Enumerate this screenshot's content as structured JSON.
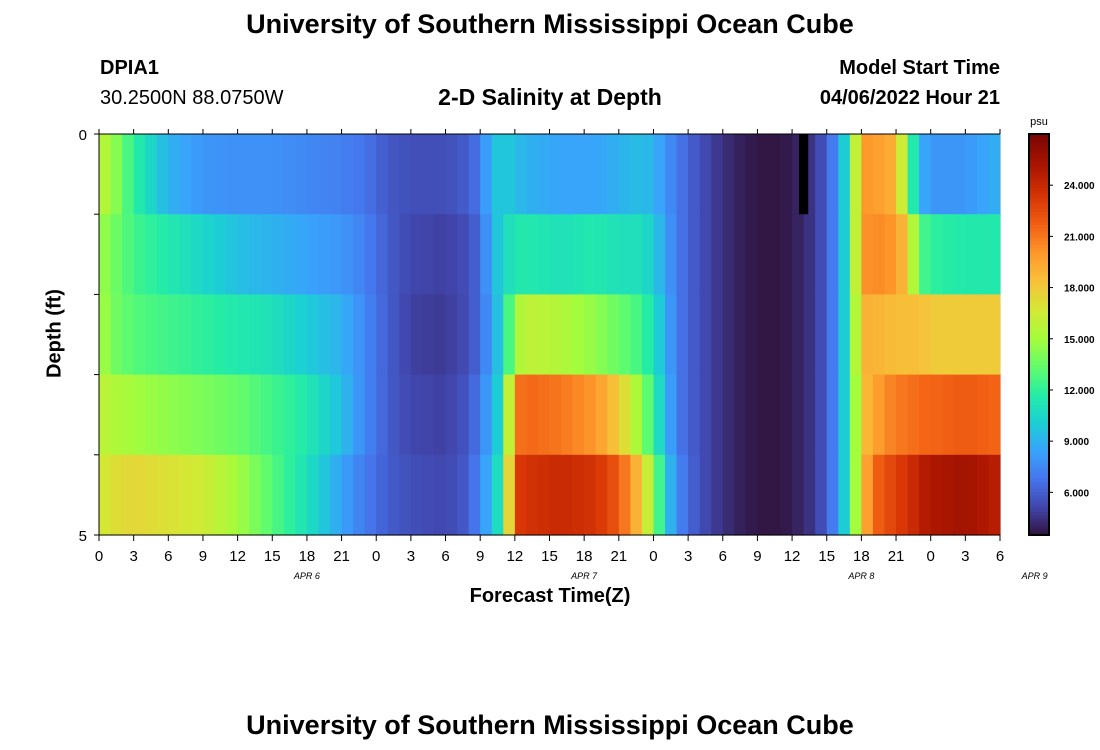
{
  "page": {
    "title": "University of Southern Mississippi Ocean Cube",
    "footer_title": "University of Southern Mississippi Ocean Cube",
    "station_id": "DPIA1",
    "station_coords": "30.2500N  88.0750W",
    "plot_title": "2-D Salinity at Depth",
    "model_start_label": "Model Start Time",
    "model_start_value": "04/06/2022 Hour 21"
  },
  "chart_data": {
    "type": "heatmap",
    "title": "2-D Salinity at Depth",
    "xlabel": "Forecast Time(Z)",
    "ylabel": "Depth (ft)",
    "colorbar_unit": "psu",
    "colorbar_ticks": [
      "6.000",
      "9.000",
      "12.000",
      "15.000",
      "18.000",
      "21.000",
      "24.000"
    ],
    "colorbar_range": [
      3.5,
      27
    ],
    "ylim": [
      0,
      5
    ],
    "y_tick_labels": [
      "0",
      "5"
    ],
    "x_tick_labels": [
      "0",
      "3",
      "6",
      "9",
      "12",
      "15",
      "18",
      "21",
      "0",
      "3",
      "6",
      "9",
      "12",
      "15",
      "18",
      "21",
      "0",
      "3",
      "6",
      "9",
      "12",
      "15",
      "18",
      "21",
      "0",
      "3",
      "6"
    ],
    "day_labels": [
      {
        "label": "APR 6",
        "hour": 18
      },
      {
        "label": "APR 7",
        "hour": 42
      },
      {
        "label": "APR 8",
        "hour": 66
      },
      {
        "label": "APR 9",
        "hour": 81
      }
    ],
    "x_range_hours": [
      0,
      78
    ],
    "depth_layers": 5,
    "keyframes": [
      {
        "h": 0,
        "v": [
          16.0,
          15.0,
          15.5,
          16.0,
          16.5
        ]
      },
      {
        "h": 1,
        "v": [
          15.0,
          14.0,
          14.0,
          15.5,
          17.0
        ]
      },
      {
        "h": 3,
        "v": [
          12.0,
          12.5,
          13.0,
          15.0,
          17.5
        ]
      },
      {
        "h": 6,
        "v": [
          9.0,
          11.5,
          12.5,
          14.5,
          17.0
        ]
      },
      {
        "h": 9,
        "v": [
          8.0,
          10.5,
          12.0,
          14.0,
          16.5
        ]
      },
      {
        "h": 12,
        "v": [
          7.8,
          9.5,
          11.5,
          13.5,
          15.0
        ]
      },
      {
        "h": 15,
        "v": [
          7.8,
          9.0,
          11.0,
          12.5,
          13.0
        ]
      },
      {
        "h": 18,
        "v": [
          7.5,
          8.5,
          10.0,
          11.5,
          11.0
        ]
      },
      {
        "h": 21,
        "v": [
          7.2,
          8.0,
          9.0,
          9.5,
          8.5
        ]
      },
      {
        "h": 23,
        "v": [
          6.8,
          7.2,
          7.5,
          7.5,
          7.0
        ]
      },
      {
        "h": 25,
        "v": [
          5.8,
          6.0,
          6.0,
          6.0,
          6.0
        ]
      },
      {
        "h": 27,
        "v": [
          5.5,
          5.2,
          5.0,
          5.2,
          5.5
        ]
      },
      {
        "h": 30,
        "v": [
          5.5,
          5.0,
          4.8,
          5.0,
          5.2
        ]
      },
      {
        "h": 32,
        "v": [
          6.0,
          5.5,
          5.5,
          5.8,
          6.0
        ]
      },
      {
        "h": 33,
        "v": [
          7.0,
          6.5,
          6.5,
          7.0,
          7.5
        ]
      },
      {
        "h": 34,
        "v": [
          9.5,
          9.0,
          8.5,
          9.0,
          9.5
        ]
      },
      {
        "h": 35,
        "v": [
          10.0,
          10.5,
          10.5,
          11.0,
          12.0
        ]
      },
      {
        "h": 36,
        "v": [
          9.5,
          11.5,
          15.0,
          21.0,
          23.0
        ]
      },
      {
        "h": 37,
        "v": [
          9.0,
          11.5,
          16.0,
          21.5,
          23.5
        ]
      },
      {
        "h": 40,
        "v": [
          8.5,
          11.0,
          15.5,
          21.0,
          24.0
        ]
      },
      {
        "h": 43,
        "v": [
          8.5,
          11.5,
          14.5,
          20.0,
          23.5
        ]
      },
      {
        "h": 45,
        "v": [
          9.0,
          11.0,
          13.5,
          18.0,
          22.0
        ]
      },
      {
        "h": 47,
        "v": [
          9.5,
          11.0,
          12.5,
          14.5,
          18.0
        ]
      },
      {
        "h": 48,
        "v": [
          9.0,
          10.0,
          11.0,
          12.0,
          14.5
        ]
      },
      {
        "h": 49,
        "v": [
          8.0,
          8.5,
          9.0,
          9.5,
          10.5
        ]
      },
      {
        "h": 50,
        "v": [
          7.0,
          7.0,
          7.0,
          7.0,
          7.5
        ]
      },
      {
        "h": 52,
        "v": [
          5.5,
          5.5,
          5.5,
          5.5,
          5.5
        ]
      },
      {
        "h": 54,
        "v": [
          4.5,
          4.5,
          4.5,
          4.5,
          4.5
        ]
      },
      {
        "h": 56,
        "v": [
          3.8,
          3.8,
          3.8,
          3.8,
          3.8
        ]
      },
      {
        "h": 58,
        "v": [
          3.6,
          3.6,
          3.6,
          3.6,
          3.6
        ]
      },
      {
        "h": 60,
        "v": [
          3.8,
          3.8,
          3.8,
          3.8,
          3.8
        ]
      },
      {
        "h": 62,
        "v": [
          4.8,
          4.8,
          4.8,
          4.8,
          4.8
        ]
      },
      {
        "h": 63,
        "v": [
          6.0,
          6.0,
          6.0,
          6.0,
          6.0
        ]
      },
      {
        "h": 64,
        "v": [
          8.0,
          8.0,
          8.0,
          8.0,
          8.0
        ]
      },
      {
        "h": 65,
        "v": [
          12.0,
          12.0,
          12.0,
          12.0,
          12.0
        ]
      },
      {
        "h": 66,
        "v": [
          20.0,
          20.0,
          19.0,
          18.0,
          18.0
        ]
      },
      {
        "h": 67,
        "v": [
          20.0,
          20.5,
          19.0,
          19.5,
          21.5
        ]
      },
      {
        "h": 69,
        "v": [
          19.0,
          20.0,
          18.5,
          21.0,
          23.0
        ]
      },
      {
        "h": 70,
        "v": [
          14.0,
          18.0,
          18.5,
          21.0,
          23.5
        ]
      },
      {
        "h": 71,
        "v": [
          9.0,
          13.0,
          18.5,
          21.5,
          24.5
        ]
      },
      {
        "h": 72,
        "v": [
          8.0,
          12.0,
          18.0,
          21.5,
          25.0
        ]
      },
      {
        "h": 75,
        "v": [
          8.0,
          11.5,
          18.0,
          22.0,
          25.5
        ]
      },
      {
        "h": 78,
        "v": [
          9.0,
          11.5,
          18.0,
          21.5,
          24.5
        ]
      }
    ],
    "missing_data": [
      {
        "h_start": 60.6,
        "h_end": 61.4,
        "layer": 0
      }
    ]
  }
}
